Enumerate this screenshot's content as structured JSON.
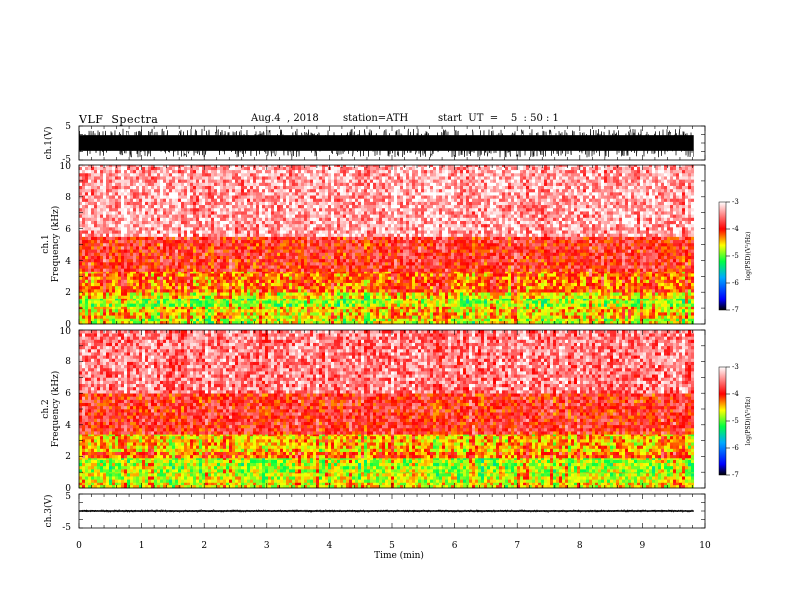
{
  "header": {
    "title": "VLF  Spectra",
    "date": "Aug.4  , 2018",
    "station": "station=ATH",
    "start_ut": "start  UT  =    5  : 50 : 1"
  },
  "chart_data": [
    {
      "type": "line",
      "panel": "ch1-waveform",
      "ylabel": "ch.1(V)",
      "ylim": [
        -5,
        5
      ],
      "yticks": [
        5,
        -5
      ],
      "xlim": [
        0,
        10
      ],
      "x_extent": [
        0,
        9.82
      ],
      "amplitude_band_V": [
        -4.2,
        4.2
      ],
      "color": "#000000"
    },
    {
      "type": "heatmap",
      "panel": "ch1-spectrogram",
      "ylabel_line1": "ch.1",
      "ylabel_line2": "Frequency  (kHz)",
      "ylim": [
        0,
        10
      ],
      "yticks": [
        0,
        2,
        4,
        6,
        8,
        10
      ],
      "xlim": [
        0,
        10
      ],
      "x_extent": [
        0,
        9.82
      ],
      "bands": [
        {
          "f0": 0.0,
          "f1": 0.35,
          "level": -4.7
        },
        {
          "f0": 0.35,
          "f1": 1.1,
          "level": -4.5
        },
        {
          "f0": 1.1,
          "f1": 1.6,
          "level": -4.85
        },
        {
          "f0": 1.6,
          "f1": 2.0,
          "level": -4.55
        },
        {
          "f0": 2.0,
          "f1": 3.3,
          "level": -4.2
        },
        {
          "f0": 3.3,
          "f1": 5.5,
          "level": -3.9
        },
        {
          "f0": 5.5,
          "f1": 10.0,
          "level": -3.35
        }
      ],
      "colorbar": {
        "ticks": [
          -3,
          -4,
          -5,
          -6,
          -7
        ],
        "label": "log(PSD)(V²/Hz)",
        "range": [
          -7,
          -3
        ]
      }
    },
    {
      "type": "heatmap",
      "panel": "ch2-spectrogram",
      "ylabel_line1": "ch.2",
      "ylabel_line2": "Frequency  (kHz)",
      "ylim": [
        0,
        10
      ],
      "yticks": [
        0,
        2,
        4,
        6,
        8,
        10
      ],
      "xlim": [
        0,
        10
      ],
      "x_extent": [
        0,
        9.82
      ],
      "bands": [
        {
          "f0": 0.0,
          "f1": 0.35,
          "level": -4.6
        },
        {
          "f0": 0.35,
          "f1": 1.0,
          "level": -4.7
        },
        {
          "f0": 1.0,
          "f1": 1.9,
          "level": -4.8
        },
        {
          "f0": 1.9,
          "f1": 2.3,
          "level": -4.2
        },
        {
          "f0": 2.3,
          "f1": 3.4,
          "level": -4.45
        },
        {
          "f0": 3.4,
          "f1": 6.0,
          "level": -3.9
        },
        {
          "f0": 6.0,
          "f1": 10.0,
          "level": -3.5
        }
      ],
      "colorbar": {
        "ticks": [
          -3,
          -4,
          -5,
          -6,
          -7
        ],
        "label": "log(PSD)(V²/Hz)",
        "range": [
          -7,
          -3
        ]
      }
    },
    {
      "type": "line",
      "panel": "ch3-waveform",
      "ylabel": "ch.3(V)",
      "ylim": [
        -5,
        5
      ],
      "yticks": [
        5,
        -5
      ],
      "xlim": [
        0,
        10
      ],
      "x_extent": [
        0,
        9.82
      ],
      "amplitude_band_V": [
        -0.4,
        0.4
      ],
      "xlabel": "Time  (min)",
      "xticks": [
        0,
        1,
        2,
        3,
        4,
        5,
        6,
        7,
        8,
        9,
        10
      ],
      "color": "#000000"
    }
  ]
}
